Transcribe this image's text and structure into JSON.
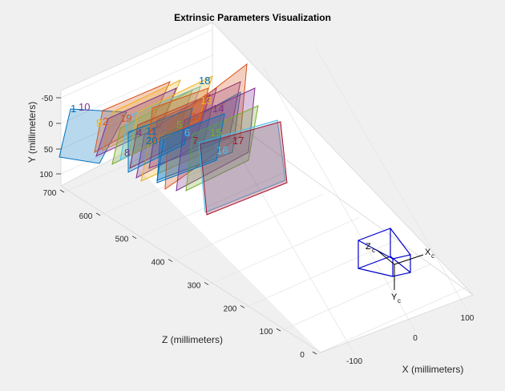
{
  "chart_data": {
    "type": "scatter3d",
    "title": "Extrinsic Parameters Visualization",
    "xlabel": "X (millimeters)",
    "ylabel": "Y (millimeters)",
    "zlabel": "Z (millimeters)",
    "x_ticks": [
      "-100",
      "0",
      "100"
    ],
    "y_ticks": [
      "-50",
      "0",
      "50",
      "100"
    ],
    "z_ticks": [
      "0",
      "100",
      "200",
      "300",
      "400",
      "500",
      "600",
      "700"
    ],
    "grid": true,
    "camera_axis_labels": [
      "X",
      "Y",
      "Z"
    ],
    "camera_axis_subscript": "c",
    "planes": [
      {
        "label": "1",
        "color": "#0072bd"
      },
      {
        "label": "2",
        "color": "#d95319"
      },
      {
        "label": "3",
        "color": "#edb120"
      },
      {
        "label": "4",
        "color": "#7e2f8e"
      },
      {
        "label": "5",
        "color": "#77ac30"
      },
      {
        "label": "6",
        "color": "#4dbeee"
      },
      {
        "label": "7",
        "color": "#a2142f"
      },
      {
        "label": "8",
        "color": "#7e2f8e"
      },
      {
        "label": "9",
        "color": "#edb120"
      },
      {
        "label": "10",
        "color": "#7e2f8e"
      },
      {
        "label": "11",
        "color": "#0072bd"
      },
      {
        "label": "12",
        "color": "#d95319"
      },
      {
        "label": "13",
        "color": "#edb120"
      },
      {
        "label": "14",
        "color": "#7e2f8e"
      },
      {
        "label": "15",
        "color": "#77ac30"
      },
      {
        "label": "16",
        "color": "#4dbeee"
      },
      {
        "label": "17",
        "color": "#a2142f"
      },
      {
        "label": "18",
        "color": "#0072bd"
      },
      {
        "label": "19",
        "color": "#d95319"
      },
      {
        "label": "20",
        "color": "#0072bd"
      }
    ],
    "camera_color": "#0000c8"
  }
}
